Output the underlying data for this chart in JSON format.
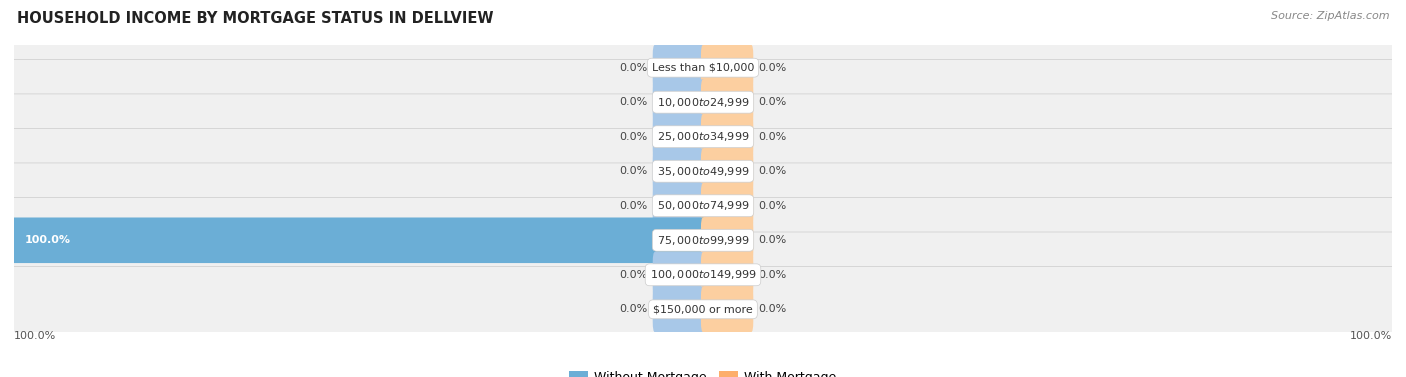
{
  "title": "HOUSEHOLD INCOME BY MORTGAGE STATUS IN DELLVIEW",
  "source": "Source: ZipAtlas.com",
  "categories": [
    "Less than $10,000",
    "$10,000 to $24,999",
    "$25,000 to $34,999",
    "$35,000 to $49,999",
    "$50,000 to $74,999",
    "$75,000 to $99,999",
    "$100,000 to $149,999",
    "$150,000 or more"
  ],
  "without_mortgage": [
    0.0,
    0.0,
    0.0,
    0.0,
    0.0,
    100.0,
    0.0,
    0.0
  ],
  "with_mortgage": [
    0.0,
    0.0,
    0.0,
    0.0,
    0.0,
    0.0,
    0.0,
    0.0
  ],
  "color_without": "#6BAED6",
  "color_with": "#FDAE6B",
  "color_without_stub": "#A8C8E8",
  "color_with_stub": "#FCCFA0",
  "background_row_light": "#F0F0F0",
  "background_row_dark": "#E5E5E5",
  "background_fig": "#FFFFFF",
  "stub_size": 7.0,
  "xlim_left": -100,
  "xlim_right": 100,
  "label_fontsize": 8.0,
  "title_fontsize": 10.5,
  "source_fontsize": 8.0,
  "category_fontsize": 8.0,
  "legend_fontsize": 9.0,
  "axis_label_left": "100.0%",
  "axis_label_right": "100.0%"
}
